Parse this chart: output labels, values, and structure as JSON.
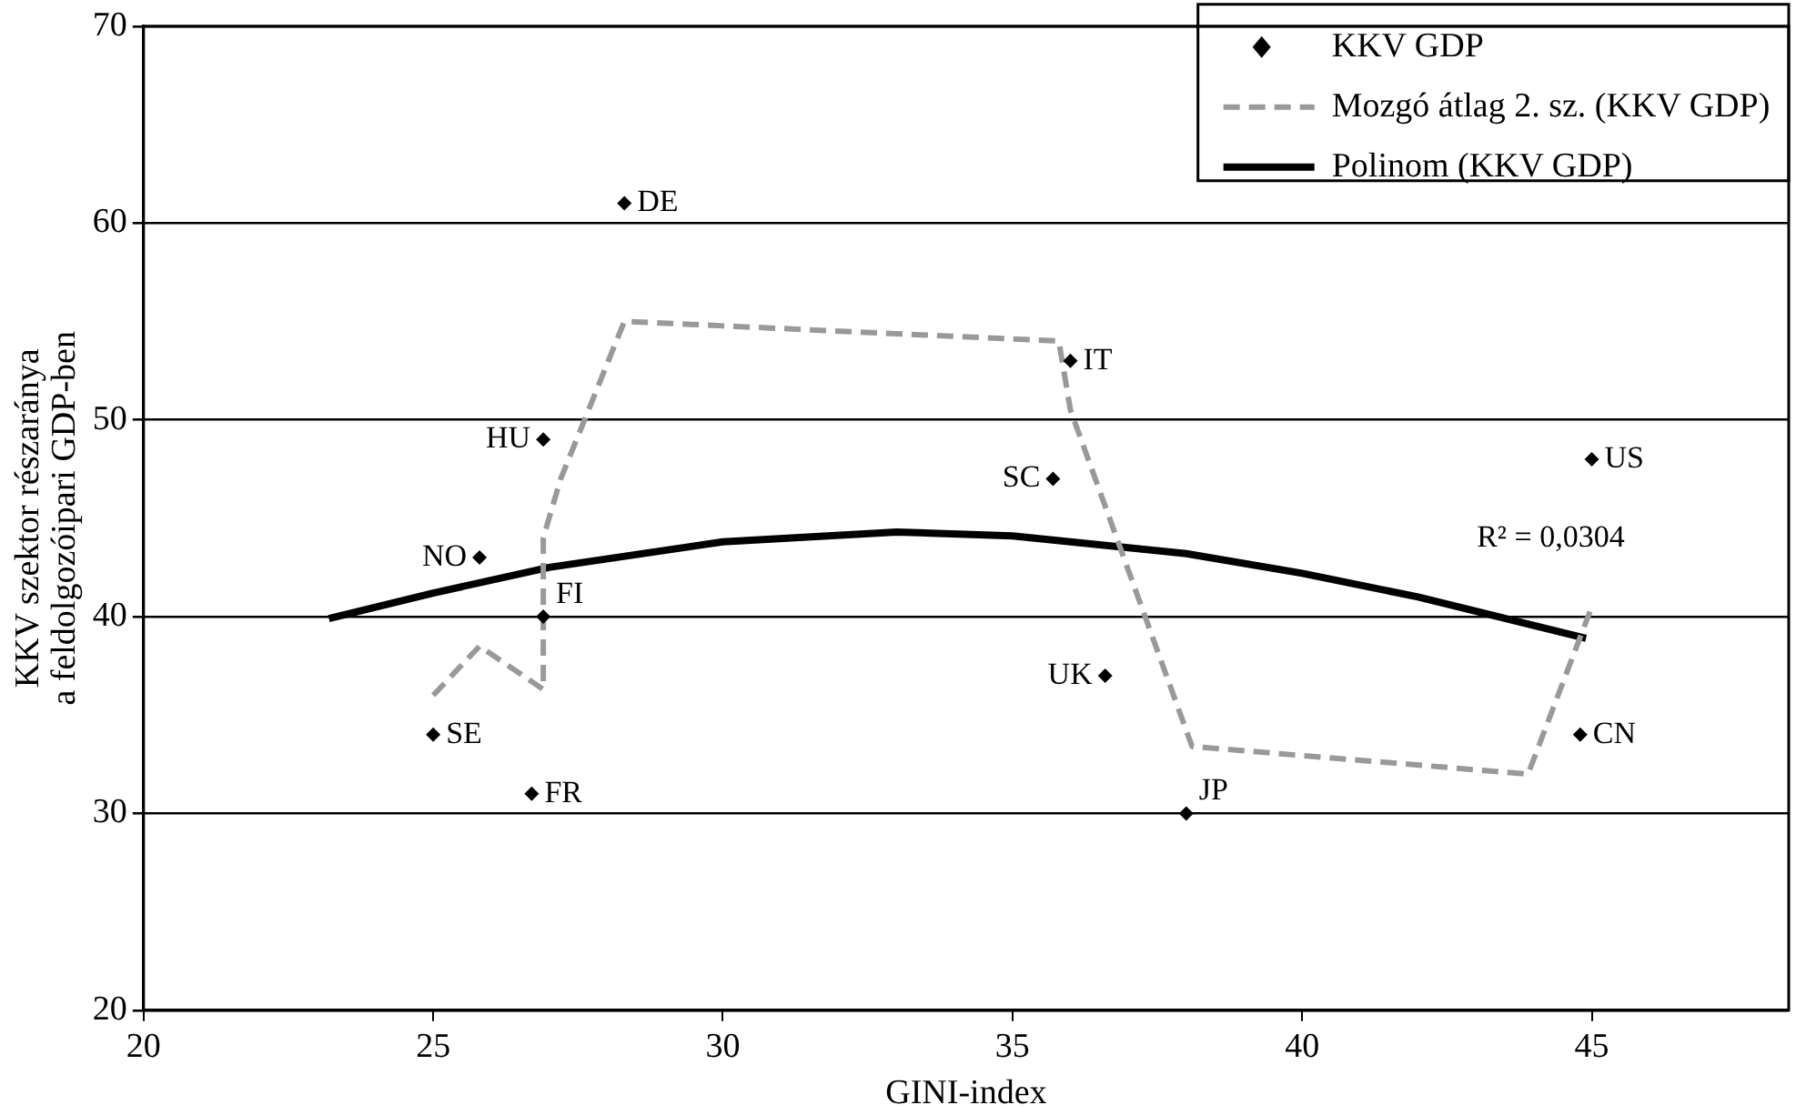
{
  "chart_data": {
    "type": "scatter",
    "xlabel": "GINI-index",
    "ylabel": "KKV szektor részaránya\na feldolgozóipari GDP-ben",
    "xlim": [
      20,
      48.4
    ],
    "xticks": [
      20,
      25,
      30,
      35,
      40,
      45
    ],
    "ylim": [
      20,
      70
    ],
    "yticks": [
      20,
      30,
      40,
      50,
      60,
      70
    ],
    "grid": "y",
    "legend": "top right",
    "series": [
      {
        "name": "KKV GDP",
        "type": "scatter",
        "marker": "diamond",
        "color": "#000000",
        "x": [
          25,
          25.8,
          26.7,
          26.9,
          26.9,
          28.3,
          35.7,
          36,
          36.6,
          38,
          44.8,
          45
        ],
        "values": [
          34,
          43,
          31,
          49,
          40,
          61,
          47,
          53,
          37,
          30,
          34,
          48
        ]
      },
      {
        "name": "Mozgó átlag 2. sz. (KKV GDP)",
        "type": "line",
        "line_style": "dashed",
        "marker": "none",
        "color": "#999999",
        "x": [
          25,
          25.8,
          26.9,
          26.9,
          27.2,
          28.3,
          35.8,
          36,
          38.1,
          43.9,
          45
        ],
        "values": [
          36,
          38.5,
          36.3,
          44,
          47,
          55,
          54,
          50.5,
          33.4,
          32,
          40.5
        ]
      },
      {
        "name": "Polinom (KKV GDP)",
        "type": "line",
        "line_style": "solid",
        "marker": "none",
        "color": "#000000",
        "x": [
          23.2,
          25,
          27,
          30,
          33,
          35,
          38,
          40,
          42,
          44.9
        ],
        "values": [
          39.9,
          41.2,
          42.5,
          43.8,
          44.3,
          44.1,
          43.2,
          42.2,
          41,
          38.9
        ]
      }
    ],
    "annotations": [
      {
        "text": "SE",
        "x": 25,
        "y": 34
      },
      {
        "text": "NO",
        "x": 25.8,
        "y": 43
      },
      {
        "text": "FR",
        "x": 26.7,
        "y": 31
      },
      {
        "text": "HU",
        "x": 26.9,
        "y": 49
      },
      {
        "text": "FI",
        "x": 26.9,
        "y": 40
      },
      {
        "text": "DE",
        "x": 28.3,
        "y": 61
      },
      {
        "text": "SC",
        "x": 35.7,
        "y": 47
      },
      {
        "text": "IT",
        "x": 36,
        "y": 53
      },
      {
        "text": "UK",
        "x": 36.6,
        "y": 37
      },
      {
        "text": "JP",
        "x": 38,
        "y": 30
      },
      {
        "text": "CN",
        "x": 44.8,
        "y": 34
      },
      {
        "text": "US",
        "x": 45,
        "y": 48
      },
      "R² = 0,0304"
    ]
  }
}
